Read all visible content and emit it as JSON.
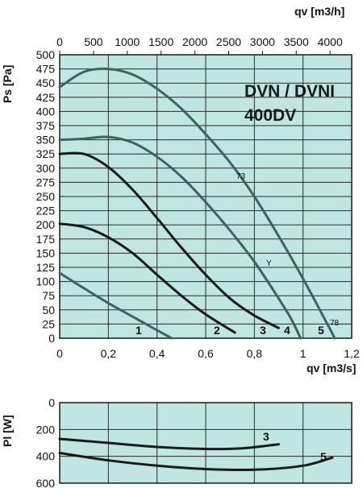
{
  "chart_data": [
    {
      "type": "line",
      "title_lines": [
        "DVN / DVNI",
        "400DV"
      ],
      "xlabel": "qv [m3/s]",
      "x2label": "qv [m3/h]",
      "ylabel": "Ps [Pa]",
      "xlim": [
        0,
        1.2
      ],
      "ylim": [
        0,
        500
      ],
      "x_ticks": [
        "0",
        "0,2",
        "0,4",
        "0,6",
        "0,8",
        "1",
        "1,2"
      ],
      "x2_ticks": [
        "0",
        "500",
        "1000",
        "1500",
        "2000",
        "2500",
        "3000",
        "3500",
        "4000"
      ],
      "y_ticks": [
        "0",
        "25",
        "50",
        "75",
        "100",
        "125",
        "150",
        "175",
        "200",
        "225",
        "250",
        "275",
        "300",
        "325",
        "350",
        "375",
        "400",
        "425",
        "450",
        "475",
        "500"
      ],
      "grid": true,
      "background": "#bfe6e1",
      "series": [
        {
          "name": "1",
          "color": "#3a6466",
          "x": [
            0,
            0.1,
            0.2,
            0.3,
            0.4,
            0.46
          ],
          "y": [
            115,
            88,
            62,
            38,
            14,
            0
          ]
        },
        {
          "name": "2",
          "color": "#1a1a1a",
          "x": [
            0,
            0.1,
            0.2,
            0.3,
            0.4,
            0.5,
            0.6,
            0.72
          ],
          "y": [
            202,
            196,
            178,
            150,
            112,
            75,
            42,
            10
          ]
        },
        {
          "name": "3",
          "color": "#1a1a1a",
          "x": [
            0,
            0.1,
            0.2,
            0.3,
            0.4,
            0.5,
            0.6,
            0.7,
            0.8,
            0.9
          ],
          "y": [
            325,
            325,
            302,
            262,
            212,
            160,
            112,
            70,
            40,
            18
          ]
        },
        {
          "name": "4",
          "color": "#3a6466",
          "x": [
            0,
            0.1,
            0.2,
            0.3,
            0.4,
            0.5,
            0.6,
            0.7,
            0.8,
            0.9,
            0.95,
            0.99
          ],
          "y": [
            350,
            352,
            355,
            345,
            320,
            285,
            240,
            190,
            135,
            70,
            35,
            0
          ]
        },
        {
          "name": "5",
          "color": "#3a6466",
          "x": [
            0,
            0.1,
            0.2,
            0.3,
            0.4,
            0.5,
            0.6,
            0.7,
            0.8,
            0.9,
            1.0,
            1.1,
            1.13
          ],
          "y": [
            443,
            470,
            475,
            465,
            440,
            405,
            360,
            310,
            250,
            180,
            105,
            25,
            0
          ]
        }
      ],
      "annotations": [
        "73",
        "Y",
        "78"
      ]
    },
    {
      "type": "line",
      "ylabel": "Pl [W]",
      "xlim": [
        0,
        1.2
      ],
      "ylim": [
        600,
        0
      ],
      "y_ticks": [
        "0",
        "200",
        "400",
        "600"
      ],
      "grid": true,
      "background": "#bfe6e1",
      "series": [
        {
          "name": "3",
          "color": "#1a1a1a",
          "x": [
            0,
            0.2,
            0.4,
            0.6,
            0.75,
            0.9
          ],
          "y": [
            270,
            300,
            330,
            345,
            340,
            310
          ]
        },
        {
          "name": "5",
          "color": "#1a1a1a",
          "x": [
            0,
            0.2,
            0.4,
            0.6,
            0.8,
            1.0,
            1.12
          ],
          "y": [
            375,
            430,
            470,
            495,
            500,
            470,
            410
          ]
        }
      ]
    }
  ]
}
